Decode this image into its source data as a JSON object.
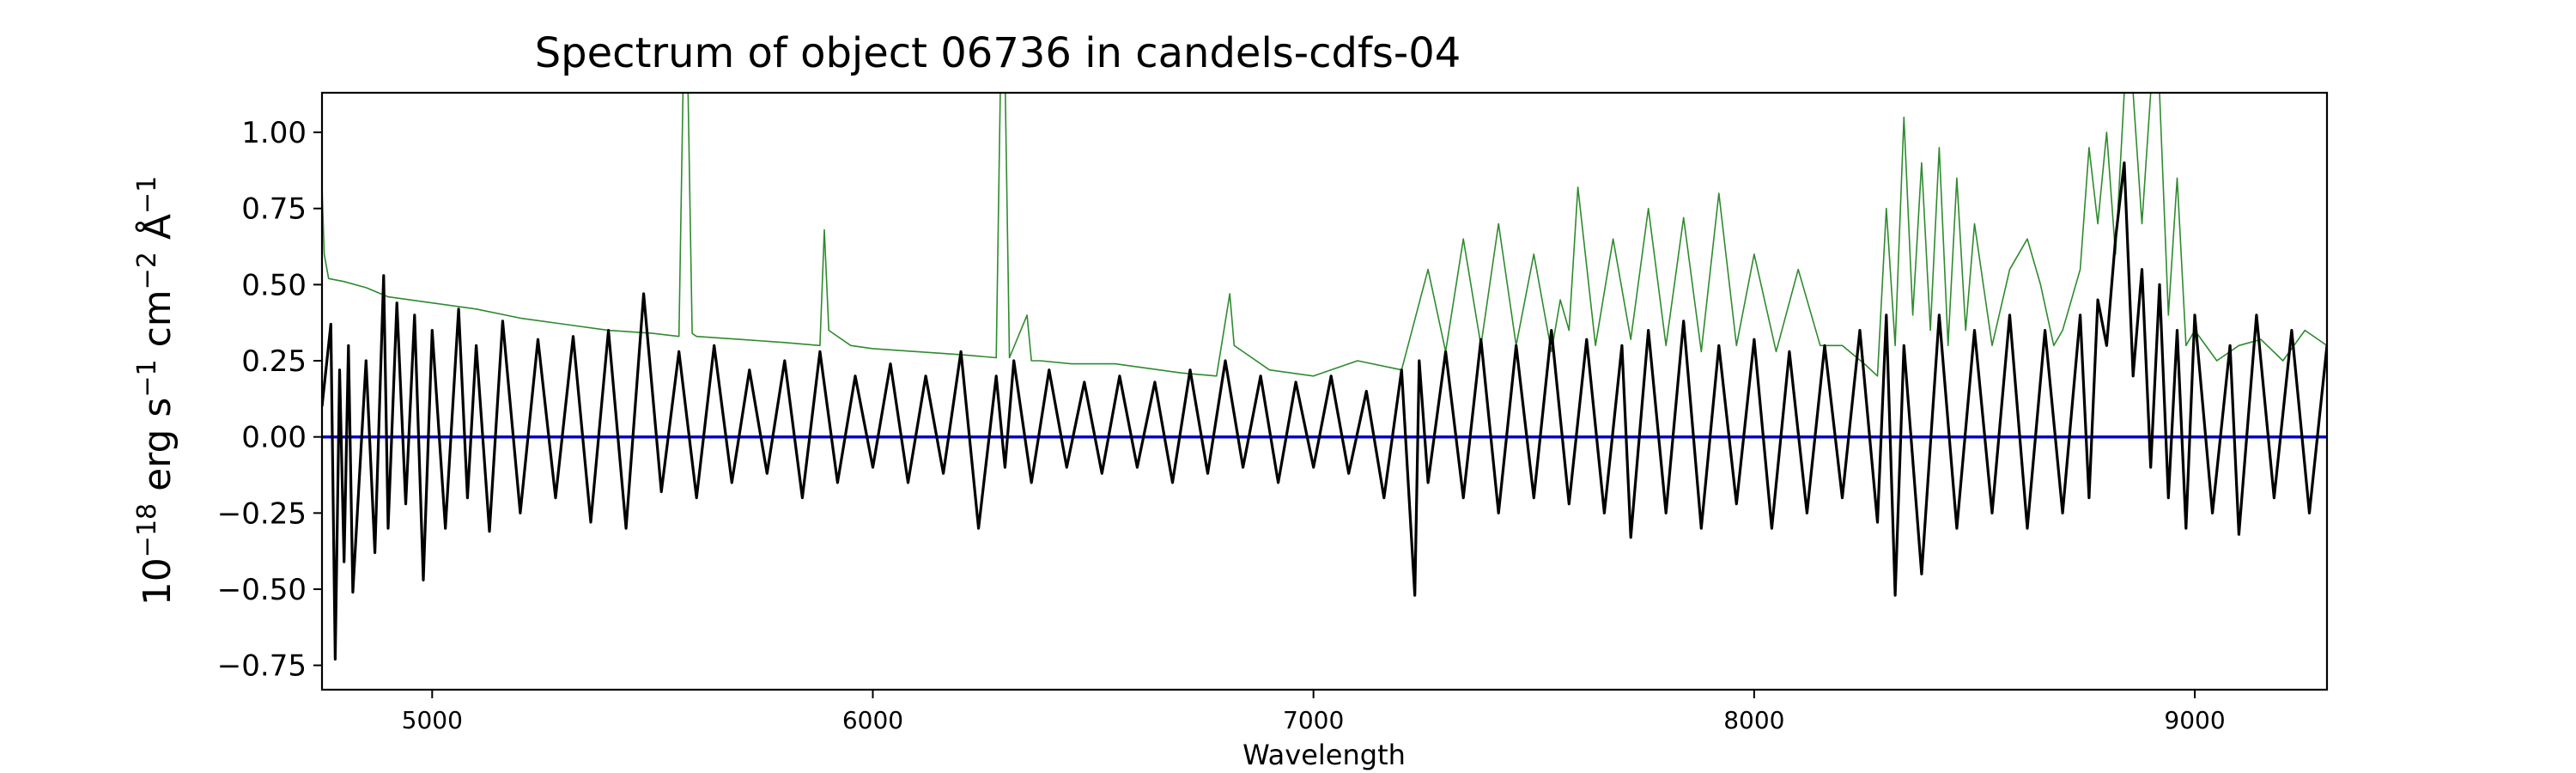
{
  "chart_data": {
    "type": "line",
    "title": "Spectrum of object 06736 in candels-cdfs-04",
    "xlabel": "Wavelength",
    "ylabel_parts": {
      "base": "10",
      "exp1": "−18",
      "t2": " erg s",
      "exp2": "−1",
      "t3": " cm",
      "exp3": "−2",
      "t4": " Å",
      "exp4": "−1"
    },
    "xlim": [
      4750,
      9300
    ],
    "ylim": [
      -0.83,
      1.13
    ],
    "x_ticks": [
      5000,
      6000,
      7000,
      8000,
      9000
    ],
    "x_tick_labels": [
      "5000",
      "6000",
      "7000",
      "8000",
      "9000"
    ],
    "y_ticks": [
      -0.75,
      -0.5,
      -0.25,
      0.0,
      0.25,
      0.5,
      0.75,
      1.0
    ],
    "y_tick_labels": [
      "−0.75",
      "−0.50",
      "−0.25",
      "0.00",
      "0.25",
      "0.50",
      "0.75",
      "1.00"
    ],
    "grid": false,
    "legend": "none",
    "colors": {
      "flux": "#000000",
      "error": "#2e8b2e",
      "zero": "#0000cc"
    },
    "series": [
      {
        "role": "flux",
        "x": [
          4750,
          4770,
          4780,
          4790,
          4800,
          4810,
          4820,
          4850,
          4870,
          4890,
          4900,
          4920,
          4940,
          4960,
          4980,
          5000,
          5030,
          5060,
          5080,
          5100,
          5130,
          5160,
          5200,
          5240,
          5280,
          5320,
          5360,
          5400,
          5440,
          5480,
          5520,
          5560,
          5600,
          5640,
          5680,
          5720,
          5760,
          5800,
          5840,
          5880,
          5920,
          5960,
          6000,
          6040,
          6080,
          6120,
          6160,
          6200,
          6240,
          6280,
          6300,
          6320,
          6360,
          6400,
          6440,
          6480,
          6520,
          6560,
          6600,
          6640,
          6680,
          6720,
          6760,
          6800,
          6840,
          6880,
          6920,
          6960,
          7000,
          7040,
          7080,
          7120,
          7160,
          7200,
          7230,
          7240,
          7260,
          7300,
          7340,
          7380,
          7420,
          7460,
          7500,
          7540,
          7580,
          7620,
          7660,
          7700,
          7720,
          7760,
          7800,
          7840,
          7880,
          7920,
          7960,
          8000,
          8040,
          8080,
          8120,
          8160,
          8200,
          8240,
          8280,
          8300,
          8320,
          8340,
          8380,
          8420,
          8460,
          8500,
          8540,
          8580,
          8620,
          8660,
          8700,
          8740,
          8760,
          8780,
          8800,
          8820,
          8840,
          8860,
          8880,
          8900,
          8920,
          8940,
          8960,
          8980,
          9000,
          9040,
          9080,
          9100,
          9140,
          9180,
          9220,
          9260,
          9300
        ],
        "y": [
          0.1,
          0.37,
          -0.73,
          0.22,
          -0.41,
          0.3,
          -0.51,
          0.25,
          -0.38,
          0.53,
          -0.3,
          0.44,
          -0.22,
          0.4,
          -0.47,
          0.35,
          -0.3,
          0.42,
          -0.2,
          0.3,
          -0.31,
          0.38,
          -0.25,
          0.32,
          -0.2,
          0.33,
          -0.28,
          0.35,
          -0.3,
          0.47,
          -0.18,
          0.28,
          -0.2,
          0.3,
          -0.15,
          0.22,
          -0.12,
          0.25,
          -0.2,
          0.28,
          -0.15,
          0.2,
          -0.1,
          0.24,
          -0.15,
          0.2,
          -0.12,
          0.28,
          -0.3,
          0.2,
          -0.1,
          0.25,
          -0.15,
          0.22,
          -0.1,
          0.18,
          -0.12,
          0.2,
          -0.1,
          0.18,
          -0.15,
          0.22,
          -0.12,
          0.25,
          -0.1,
          0.2,
          -0.15,
          0.18,
          -0.1,
          0.2,
          -0.12,
          0.15,
          -0.2,
          0.22,
          -0.52,
          0.25,
          -0.15,
          0.28,
          -0.2,
          0.32,
          -0.25,
          0.3,
          -0.2,
          0.35,
          -0.22,
          0.32,
          -0.25,
          0.3,
          -0.33,
          0.35,
          -0.25,
          0.38,
          -0.3,
          0.3,
          -0.22,
          0.32,
          -0.3,
          0.28,
          -0.25,
          0.3,
          -0.2,
          0.35,
          -0.28,
          0.4,
          -0.52,
          0.3,
          -0.45,
          0.4,
          -0.3,
          0.35,
          -0.25,
          0.4,
          -0.3,
          0.35,
          -0.25,
          0.4,
          -0.2,
          0.45,
          0.3,
          0.65,
          0.9,
          0.2,
          0.55,
          -0.1,
          0.5,
          -0.2,
          0.35,
          -0.3,
          0.4,
          -0.25,
          0.3,
          -0.32,
          0.4,
          -0.2,
          0.35,
          -0.25,
          0.3
        ]
      },
      {
        "role": "error",
        "x": [
          4750,
          4755,
          4765,
          4800,
          4850,
          4900,
          5000,
          5100,
          5200,
          5300,
          5400,
          5500,
          5560,
          5570,
          5580,
          5590,
          5600,
          5700,
          5800,
          5880,
          5890,
          5900,
          5950,
          6000,
          6100,
          6200,
          6280,
          6290,
          6300,
          6310,
          6350,
          6360,
          6380,
          6450,
          6550,
          6650,
          6700,
          6780,
          6810,
          6820,
          6840,
          6900,
          7000,
          7100,
          7200,
          7260,
          7300,
          7340,
          7380,
          7420,
          7460,
          7500,
          7540,
          7560,
          7580,
          7600,
          7640,
          7680,
          7720,
          7760,
          7800,
          7840,
          7880,
          7920,
          7960,
          8000,
          8050,
          8100,
          8150,
          8200,
          8250,
          8280,
          8300,
          8320,
          8340,
          8360,
          8380,
          8400,
          8420,
          8440,
          8460,
          8480,
          8500,
          8540,
          8580,
          8620,
          8650,
          8680,
          8700,
          8740,
          8760,
          8780,
          8800,
          8820,
          8840,
          8860,
          8880,
          8900,
          8920,
          8940,
          8960,
          8980,
          9000,
          9050,
          9100,
          9150,
          9200,
          9250,
          9300
        ],
        "y": [
          0.82,
          0.6,
          0.52,
          0.51,
          0.49,
          0.46,
          0.44,
          0.42,
          0.39,
          0.37,
          0.35,
          0.34,
          0.33,
          1.2,
          1.2,
          0.34,
          0.33,
          0.32,
          0.31,
          0.3,
          0.68,
          0.35,
          0.3,
          0.29,
          0.28,
          0.27,
          0.26,
          1.2,
          1.2,
          0.26,
          0.4,
          0.25,
          0.25,
          0.24,
          0.24,
          0.22,
          0.21,
          0.2,
          0.47,
          0.3,
          0.28,
          0.22,
          0.2,
          0.25,
          0.22,
          0.55,
          0.28,
          0.65,
          0.3,
          0.7,
          0.3,
          0.6,
          0.28,
          0.45,
          0.35,
          0.82,
          0.3,
          0.65,
          0.32,
          0.75,
          0.3,
          0.72,
          0.28,
          0.8,
          0.3,
          0.6,
          0.28,
          0.55,
          0.3,
          0.3,
          0.24,
          0.2,
          0.75,
          0.3,
          1.05,
          0.4,
          0.9,
          0.35,
          0.95,
          0.3,
          0.85,
          0.35,
          0.7,
          0.3,
          0.55,
          0.65,
          0.5,
          0.3,
          0.35,
          0.55,
          0.95,
          0.7,
          1.0,
          0.6,
          1.13,
          1.13,
          0.7,
          1.13,
          1.13,
          0.4,
          0.85,
          0.3,
          0.35,
          0.25,
          0.3,
          0.32,
          0.25,
          0.35,
          0.3
        ]
      },
      {
        "role": "zero",
        "x": [
          4750,
          9300
        ],
        "y": [
          0,
          0
        ]
      }
    ]
  }
}
